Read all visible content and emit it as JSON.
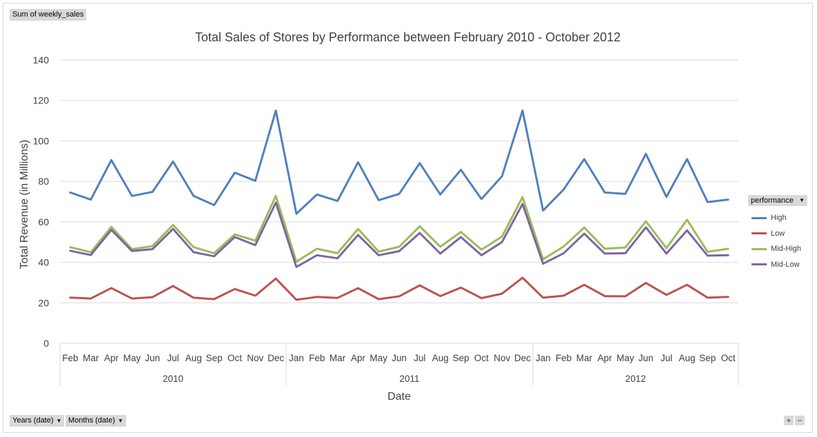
{
  "field_button": {
    "label": "Sum of weekly_sales"
  },
  "axis_buttons": [
    {
      "label": "Years (date)"
    },
    {
      "label": "Months (date)"
    }
  ],
  "legend_button": {
    "label": "performance"
  },
  "zoom": {
    "plus": "+",
    "minus": "−"
  },
  "icons": {
    "dropdown": "dropdown-arrow-icon"
  },
  "chart_data": {
    "type": "line",
    "title": "Total Sales of Stores by Performance between February 2010 - October 2012",
    "xlabel": "Date",
    "ylabel": "Total Revenue (in Millions)",
    "ylim": [
      0,
      140
    ],
    "yticks": [
      0,
      20,
      40,
      60,
      80,
      100,
      120,
      140
    ],
    "grid": true,
    "legend_position": "right",
    "categories": [
      "Feb",
      "Mar",
      "Apr",
      "May",
      "Jun",
      "Jul",
      "Aug",
      "Sep",
      "Oct",
      "Nov",
      "Dec",
      "Jan",
      "Feb",
      "Mar",
      "Apr",
      "May",
      "Jun",
      "Jul",
      "Aug",
      "Sep",
      "Oct",
      "Nov",
      "Dec",
      "Jan",
      "Feb",
      "Mar",
      "Apr",
      "May",
      "Jun",
      "Jul",
      "Aug",
      "Sep",
      "Oct"
    ],
    "groups": [
      {
        "label": "2010",
        "count": 11
      },
      {
        "label": "2011",
        "count": 12
      },
      {
        "label": "2012",
        "count": 10
      }
    ],
    "series": [
      {
        "name": "High",
        "color": "#4f81bd",
        "values": [
          74.5,
          71,
          90.5,
          72.8,
          74.8,
          89.8,
          72.8,
          68.3,
          84.3,
          80.3,
          115,
          64,
          73.5,
          70.3,
          89.5,
          70.7,
          73.8,
          89,
          73.5,
          85.7,
          71.3,
          82.5,
          115,
          65.6,
          76,
          91,
          74.5,
          73.8,
          93.6,
          72.3,
          91,
          69.8,
          71
        ]
      },
      {
        "name": "Low",
        "color": "#c0504d",
        "values": [
          22.6,
          22.1,
          27.3,
          22.1,
          22.8,
          28.3,
          22.5,
          21.8,
          26.8,
          23.5,
          32,
          21.5,
          22.9,
          22.4,
          27.2,
          21.8,
          23.2,
          28.6,
          23.3,
          27.5,
          22.3,
          24.5,
          32.4,
          22.5,
          23.5,
          28.9,
          23.3,
          23.2,
          29.8,
          23.9,
          28.9,
          22.5,
          22.9
        ]
      },
      {
        "name": "Mid-High",
        "color": "#9bbb59",
        "values": [
          47.5,
          45,
          57.5,
          46.5,
          48,
          58.5,
          47.5,
          44.5,
          53.8,
          50.7,
          72.8,
          40.3,
          46.7,
          44.5,
          56.5,
          45.3,
          47.7,
          57.8,
          47.7,
          55,
          46.3,
          52.7,
          72.2,
          41.5,
          47.8,
          57.2,
          46.7,
          47.3,
          60.3,
          47,
          61,
          45.2,
          46.7
        ]
      },
      {
        "name": "Mid-Low",
        "color": "#8064a2",
        "values": [
          45.7,
          43.6,
          56,
          45.6,
          46.5,
          56.5,
          45,
          43,
          52.5,
          48.5,
          69.5,
          37.7,
          43.5,
          42,
          53.5,
          43.5,
          45.5,
          54.5,
          44.3,
          52.5,
          43.5,
          50,
          68.8,
          39.3,
          44.5,
          54.2,
          44.3,
          44.5,
          57.3,
          44.3,
          55.8,
          43.3,
          43.5
        ]
      }
    ]
  }
}
